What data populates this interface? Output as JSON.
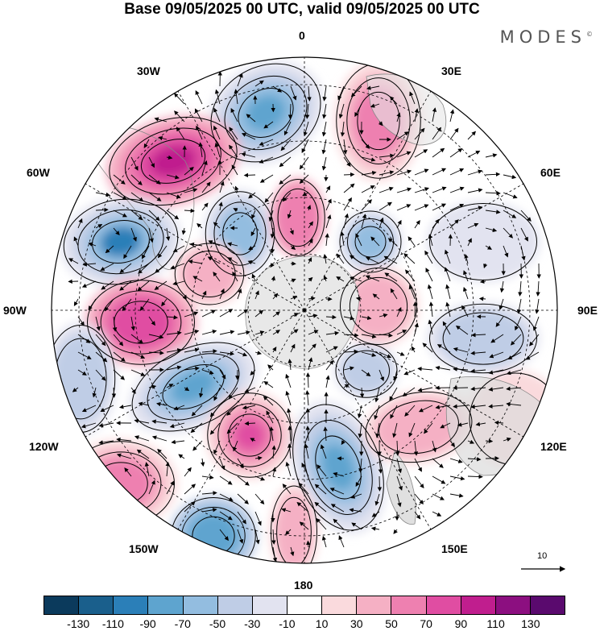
{
  "title": "Base 09/05/2025 00 UTC, valid 09/05/2025 00 UTC",
  "logo": "MODES",
  "logo_mark": "©",
  "longitude_labels": {
    "top": "0",
    "right": "90E",
    "bottom": "180",
    "left": "90W",
    "lon_30e": "30E",
    "lon_60e": "60E",
    "lon_120e": "120E",
    "lon_150e": "150E",
    "lon_30w": "30W",
    "lon_60w": "60W",
    "lon_120w": "120W",
    "lon_150w": "150W"
  },
  "reference_vector": "10",
  "colorbar": {
    "colors": [
      "#0b3a5c",
      "#1a5f8c",
      "#2b7fb8",
      "#5ea4cf",
      "#93bde0",
      "#bfcde6",
      "#e2e3f0",
      "#ffffff",
      "#fadadd",
      "#f5b0c4",
      "#ee80b0",
      "#e04da2",
      "#c01e8e",
      "#8c0f80",
      "#5a0a6e"
    ],
    "ticks": [
      "-130",
      "-110",
      "-90",
      "-70",
      "-50",
      "-30",
      "-10",
      "10",
      "30",
      "50",
      "70",
      "90",
      "110",
      "130"
    ]
  }
}
